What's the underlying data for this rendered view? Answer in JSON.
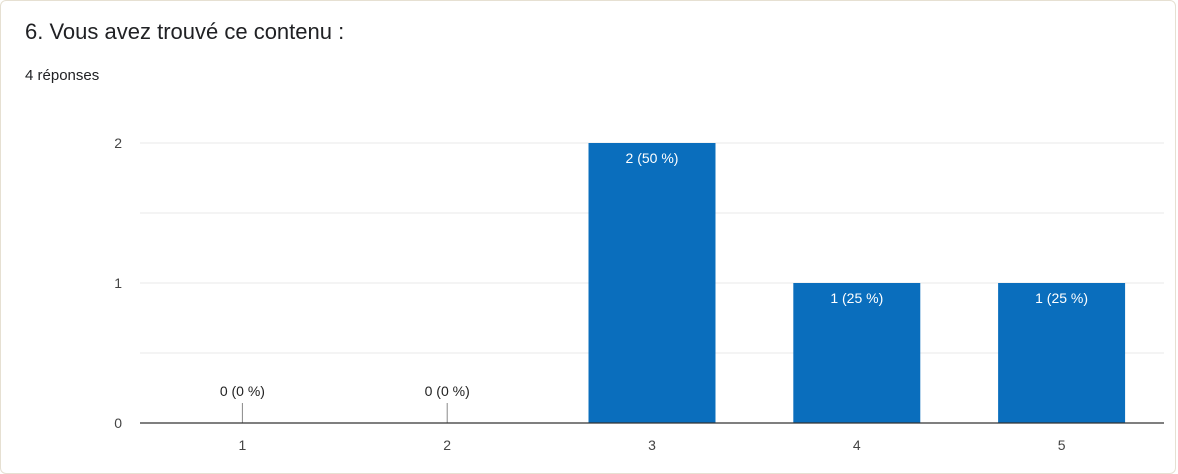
{
  "question": {
    "title": "6. Vous avez trouvé ce contenu :",
    "responses": "4 réponses"
  },
  "colors": {
    "bar": "#0a6ebd",
    "grid": "#e8e8e8",
    "axis": "#333333",
    "label_inside": "#ffffff",
    "label_outside": "#222222"
  },
  "chart_data": {
    "type": "bar",
    "categories": [
      "1",
      "2",
      "3",
      "4",
      "5"
    ],
    "values": [
      0,
      0,
      2,
      1,
      1
    ],
    "data_labels": [
      "0 (0 %)",
      "0 (0 %)",
      "2 (50 %)",
      "1 (25 %)",
      "1 (25 %)"
    ],
    "title": "6. Vous avez trouvé ce contenu :",
    "subtitle": "4 réponses",
    "xlabel": "",
    "ylabel": "",
    "ylim": [
      0,
      2
    ],
    "yticks": [
      "0",
      "1",
      "2"
    ],
    "grid": true,
    "legend": "none"
  }
}
